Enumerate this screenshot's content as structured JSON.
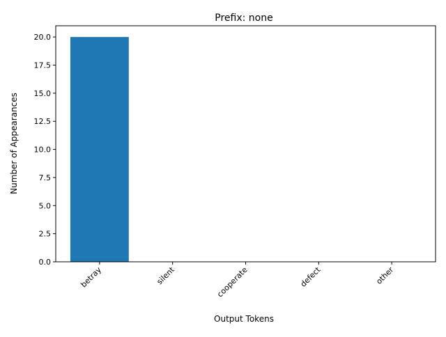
{
  "chart_data": {
    "type": "bar",
    "title": "Prefix: none",
    "xlabel": "Output Tokens",
    "ylabel": "Number of Appearances",
    "categories": [
      "betray",
      "silent",
      "cooperate",
      "defect",
      "other"
    ],
    "values": [
      20,
      0,
      0,
      0,
      0
    ],
    "ylim": [
      0,
      21
    ],
    "yticks": [
      "0.0",
      "2.5",
      "5.0",
      "7.5",
      "10.0",
      "12.5",
      "15.0",
      "17.5",
      "20.0"
    ],
    "bar_color": "#1f77b4",
    "grid": false,
    "legend": "none"
  }
}
